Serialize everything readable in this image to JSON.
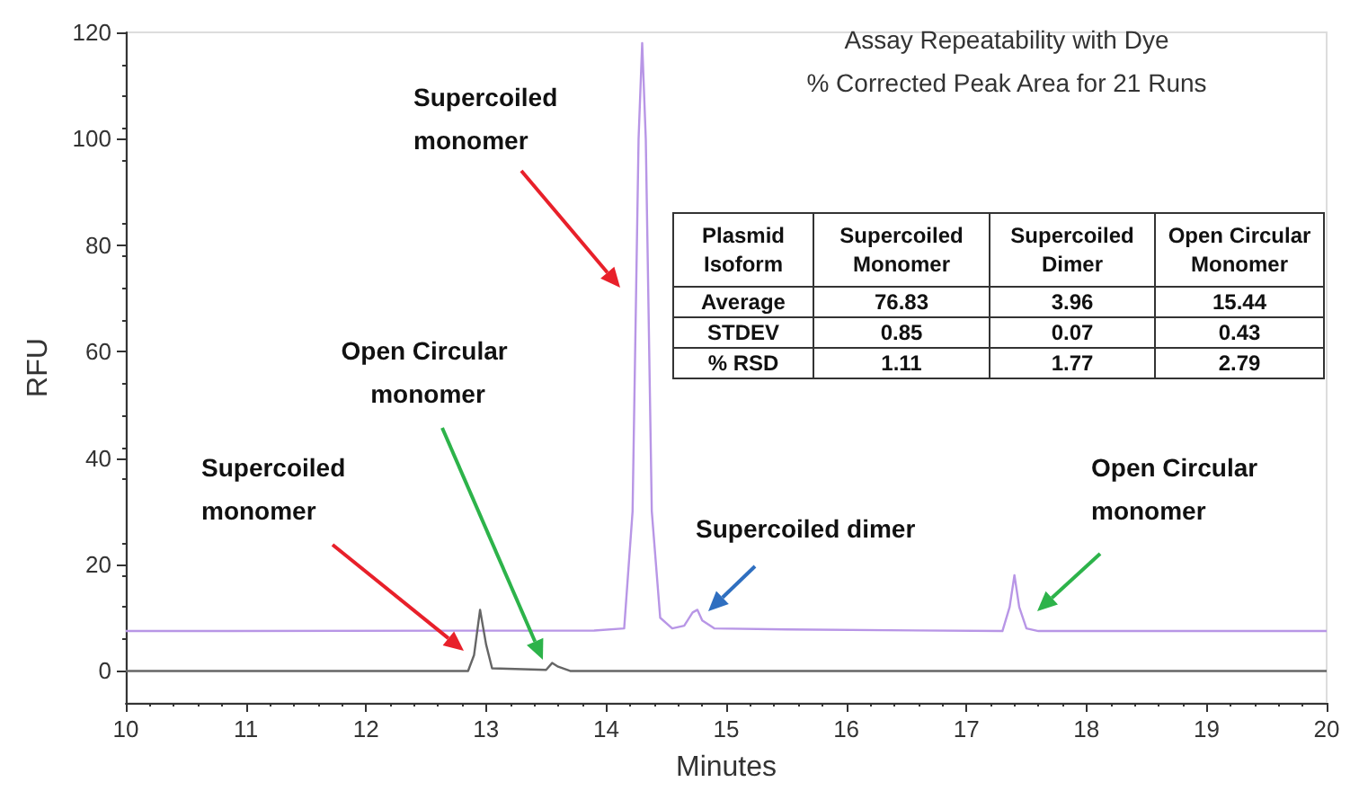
{
  "chart_data": {
    "type": "line",
    "title": "Assay Repeatability with Dye",
    "subtitle": "% Corrected Peak Area for 21 Runs",
    "xlabel": "Minutes",
    "ylabel": "RFU",
    "xlim": [
      10,
      20
    ],
    "xticks": [
      10,
      11,
      12,
      13,
      14,
      15,
      16,
      17,
      18,
      19,
      20
    ],
    "ylim": [
      -6,
      120
    ],
    "yticks": [
      0,
      20,
      40,
      60,
      80,
      100,
      120
    ],
    "marker": "none",
    "line_style": "solid",
    "series": [
      {
        "color": "#b896e6",
        "x": [
          10,
          13.9,
          14.15,
          14.22,
          14.25,
          14.27,
          14.3,
          14.33,
          14.38,
          14.45,
          14.55,
          14.65,
          14.72,
          14.76,
          14.8,
          14.9,
          15.5,
          17.3,
          17.36,
          17.4,
          17.44,
          17.5,
          17.6,
          20
        ],
        "values": [
          7.5,
          7.6,
          8,
          30,
          72,
          100,
          118,
          100,
          30,
          10,
          8,
          8.5,
          11,
          11.5,
          9.5,
          8,
          7.8,
          7.5,
          12,
          18,
          12,
          8,
          7.5,
          7.5
        ]
      },
      {
        "color": "#666666",
        "x": [
          10,
          12.85,
          12.9,
          12.95,
          13,
          13.05,
          13.5,
          13.55,
          13.6,
          13.7,
          20
        ],
        "values": [
          0,
          0,
          3,
          11.5,
          5,
          0.5,
          0.2,
          1.5,
          0.8,
          0,
          0
        ]
      }
    ],
    "annotations": [
      "Supercoiled monomer",
      "Supercoiled monomer",
      "Open Circular monomer",
      "Supercoiled dimer",
      "Open Circular monomer",
      "Plasmid Isoform",
      "Supercoiled Monomer",
      "Supercoiled Dimer",
      "Open Circular Monomer",
      "Average",
      "76.83",
      "3.96",
      "15.44",
      "STDEV",
      "0.85",
      "0.07",
      "0.43",
      "% RSD",
      "1.11",
      "1.77",
      "2.79"
    ]
  }
}
